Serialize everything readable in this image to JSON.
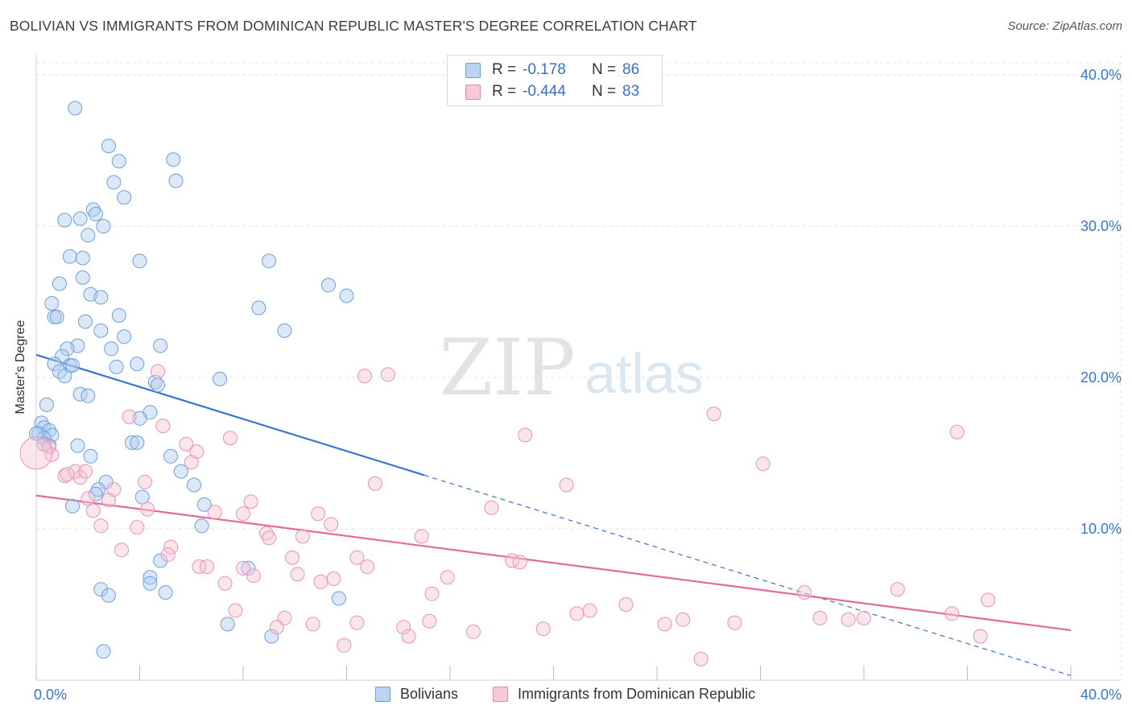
{
  "title": "BOLIVIAN VS IMMIGRANTS FROM DOMINICAN REPUBLIC MASTER'S DEGREE CORRELATION CHART",
  "source": "Source: ZipAtlas.com",
  "watermark": {
    "zip": "ZIP",
    "atlas": "atlas"
  },
  "colors": {
    "blue": "#3a74d0",
    "pink": "#e46b97",
    "blue_fill": "#bcd3f1",
    "pink_fill": "#f7c8d8"
  },
  "legend_top": {
    "rows": [
      {
        "r_label": "R =",
        "r_value": "-0.178",
        "n_label": "N =",
        "n_value": "86"
      },
      {
        "r_label": "R =",
        "r_value": "-0.444",
        "n_label": "N =",
        "n_value": "83"
      }
    ]
  },
  "legend_bottom": {
    "series1": "Bolivians",
    "series2": "Immigrants from Dominican Republic"
  },
  "chart_data": {
    "type": "scatter",
    "xlabel": "",
    "ylabel": "Master's Degree",
    "xlim": [
      0,
      40
    ],
    "ylim": [
      0,
      40.8
    ],
    "x_tick_labels": [
      "0.0%",
      "40.0%"
    ],
    "y_ticks": [
      10,
      20,
      30,
      40
    ],
    "y_tick_labels": [
      "10.0%",
      "20.0%",
      "30.0%",
      "40.0%"
    ],
    "grid": true,
    "series": [
      {
        "name": "Bolivians",
        "r": -0.178,
        "n": 86,
        "trend": {
          "x0": 0,
          "y0": 21.5,
          "x_solid_end": 15,
          "x1": 40,
          "y1": 0.3
        },
        "points": [
          [
            1.5,
            37.8
          ],
          [
            2.8,
            35.3
          ],
          [
            5.3,
            34.4
          ],
          [
            3.2,
            34.3
          ],
          [
            3.0,
            32.9
          ],
          [
            5.4,
            33.0
          ],
          [
            3.4,
            31.9
          ],
          [
            2.2,
            31.1
          ],
          [
            1.7,
            30.5
          ],
          [
            2.3,
            30.8
          ],
          [
            1.1,
            30.4
          ],
          [
            2.6,
            30.0
          ],
          [
            2.0,
            29.4
          ],
          [
            1.3,
            28.0
          ],
          [
            1.8,
            27.9
          ],
          [
            4.0,
            27.7
          ],
          [
            9.0,
            27.7
          ],
          [
            0.9,
            26.2
          ],
          [
            1.8,
            26.6
          ],
          [
            11.3,
            26.1
          ],
          [
            2.1,
            25.5
          ],
          [
            12.0,
            25.4
          ],
          [
            2.5,
            25.3
          ],
          [
            0.6,
            24.9
          ],
          [
            8.6,
            24.6
          ],
          [
            0.7,
            24.0
          ],
          [
            0.8,
            24.0
          ],
          [
            3.2,
            24.1
          ],
          [
            1.9,
            23.7
          ],
          [
            2.5,
            23.1
          ],
          [
            9.6,
            23.1
          ],
          [
            3.4,
            22.7
          ],
          [
            4.8,
            22.1
          ],
          [
            1.6,
            22.1
          ],
          [
            1.2,
            21.9
          ],
          [
            2.9,
            21.9
          ],
          [
            1.0,
            21.4
          ],
          [
            0.7,
            20.9
          ],
          [
            3.9,
            20.9
          ],
          [
            1.3,
            20.8
          ],
          [
            1.4,
            20.8
          ],
          [
            3.1,
            20.7
          ],
          [
            0.9,
            20.4
          ],
          [
            1.1,
            20.1
          ],
          [
            4.6,
            19.7
          ],
          [
            4.7,
            19.5
          ],
          [
            7.1,
            19.9
          ],
          [
            1.7,
            18.9
          ],
          [
            2.0,
            18.8
          ],
          [
            0.4,
            18.2
          ],
          [
            4.4,
            17.7
          ],
          [
            4.0,
            17.3
          ],
          [
            0.2,
            17.0
          ],
          [
            0.3,
            16.7
          ],
          [
            0.5,
            16.5
          ],
          [
            0.1,
            16.3
          ],
          [
            0.6,
            16.2
          ],
          [
            0.3,
            16.0
          ],
          [
            0.0,
            16.3
          ],
          [
            0.5,
            15.5
          ],
          [
            1.6,
            15.5
          ],
          [
            3.7,
            15.7
          ],
          [
            3.9,
            15.7
          ],
          [
            5.2,
            14.8
          ],
          [
            2.1,
            14.8
          ],
          [
            5.6,
            13.8
          ],
          [
            2.7,
            13.1
          ],
          [
            6.1,
            12.9
          ],
          [
            2.4,
            12.6
          ],
          [
            2.3,
            12.3
          ],
          [
            4.1,
            12.1
          ],
          [
            1.4,
            11.5
          ],
          [
            6.5,
            11.6
          ],
          [
            6.4,
            10.2
          ],
          [
            4.8,
            7.9
          ],
          [
            8.2,
            7.4
          ],
          [
            4.4,
            6.8
          ],
          [
            2.5,
            6.0
          ],
          [
            4.4,
            6.4
          ],
          [
            2.8,
            5.6
          ],
          [
            5.0,
            5.8
          ],
          [
            11.7,
            5.4
          ],
          [
            7.4,
            3.7
          ],
          [
            9.1,
            2.9
          ],
          [
            2.6,
            1.9
          ],
          [
            0.3,
            15.6
          ]
        ]
      },
      {
        "name": "Immigrants from Dominican Republic",
        "r": -0.444,
        "n": 83,
        "trend": {
          "x0": 0,
          "y0": 12.2,
          "x1": 40,
          "y1": 3.3
        },
        "points": [
          [
            4.7,
            20.4
          ],
          [
            12.7,
            20.1
          ],
          [
            13.6,
            20.2
          ],
          [
            26.2,
            17.6
          ],
          [
            3.6,
            17.4
          ],
          [
            4.9,
            16.8
          ],
          [
            18.9,
            16.2
          ],
          [
            35.6,
            16.4
          ],
          [
            7.5,
            16.0
          ],
          [
            5.8,
            15.6
          ],
          [
            0.5,
            15.4
          ],
          [
            6.2,
            15.1
          ],
          [
            0.6,
            14.9
          ],
          [
            6.0,
            14.4
          ],
          [
            28.1,
            14.3
          ],
          [
            1.1,
            13.5
          ],
          [
            1.7,
            13.4
          ],
          [
            1.5,
            13.8
          ],
          [
            1.2,
            13.6
          ],
          [
            1.9,
            13.8
          ],
          [
            4.2,
            13.1
          ],
          [
            13.1,
            13.0
          ],
          [
            20.5,
            12.9
          ],
          [
            3.0,
            12.6
          ],
          [
            8.3,
            11.8
          ],
          [
            2.0,
            12.0
          ],
          [
            2.8,
            11.9
          ],
          [
            4.3,
            11.3
          ],
          [
            17.6,
            11.4
          ],
          [
            6.9,
            11.1
          ],
          [
            8.0,
            11.0
          ],
          [
            10.9,
            11.0
          ],
          [
            2.2,
            11.2
          ],
          [
            11.4,
            10.3
          ],
          [
            2.5,
            10.2
          ],
          [
            3.9,
            10.1
          ],
          [
            8.9,
            9.7
          ],
          [
            9.0,
            9.4
          ],
          [
            10.3,
            9.5
          ],
          [
            14.9,
            9.5
          ],
          [
            5.2,
            8.8
          ],
          [
            3.3,
            8.6
          ],
          [
            5.1,
            8.3
          ],
          [
            9.9,
            8.1
          ],
          [
            12.4,
            8.1
          ],
          [
            18.4,
            7.9
          ],
          [
            18.7,
            7.8
          ],
          [
            6.3,
            7.5
          ],
          [
            6.6,
            7.5
          ],
          [
            8.0,
            7.4
          ],
          [
            12.8,
            7.5
          ],
          [
            10.1,
            7.0
          ],
          [
            8.4,
            6.9
          ],
          [
            15.9,
            6.8
          ],
          [
            11.5,
            6.7
          ],
          [
            11.0,
            6.5
          ],
          [
            7.3,
            6.4
          ],
          [
            33.3,
            6.0
          ],
          [
            29.7,
            5.8
          ],
          [
            15.3,
            5.7
          ],
          [
            36.8,
            5.3
          ],
          [
            22.8,
            5.0
          ],
          [
            7.7,
            4.6
          ],
          [
            21.4,
            4.6
          ],
          [
            20.9,
            4.4
          ],
          [
            35.4,
            4.4
          ],
          [
            9.6,
            4.1
          ],
          [
            25.0,
            4.0
          ],
          [
            30.3,
            4.1
          ],
          [
            31.4,
            4.0
          ],
          [
            32.0,
            4.1
          ],
          [
            24.3,
            3.7
          ],
          [
            27.0,
            3.8
          ],
          [
            12.4,
            3.8
          ],
          [
            15.2,
            3.9
          ],
          [
            10.7,
            3.7
          ],
          [
            9.3,
            3.5
          ],
          [
            14.2,
            3.5
          ],
          [
            19.6,
            3.4
          ],
          [
            16.9,
            3.2
          ],
          [
            14.4,
            2.9
          ],
          [
            11.9,
            2.3
          ],
          [
            36.5,
            2.9
          ]
        ]
      }
    ],
    "extra_points": [
      {
        "series": "Immigrants from Dominican Republic",
        "x": 25.7,
        "y": 1.4
      },
      {
        "series": "Immigrants from Dominican Republic",
        "x": 0.0,
        "y": 15.0,
        "large": true
      }
    ]
  }
}
